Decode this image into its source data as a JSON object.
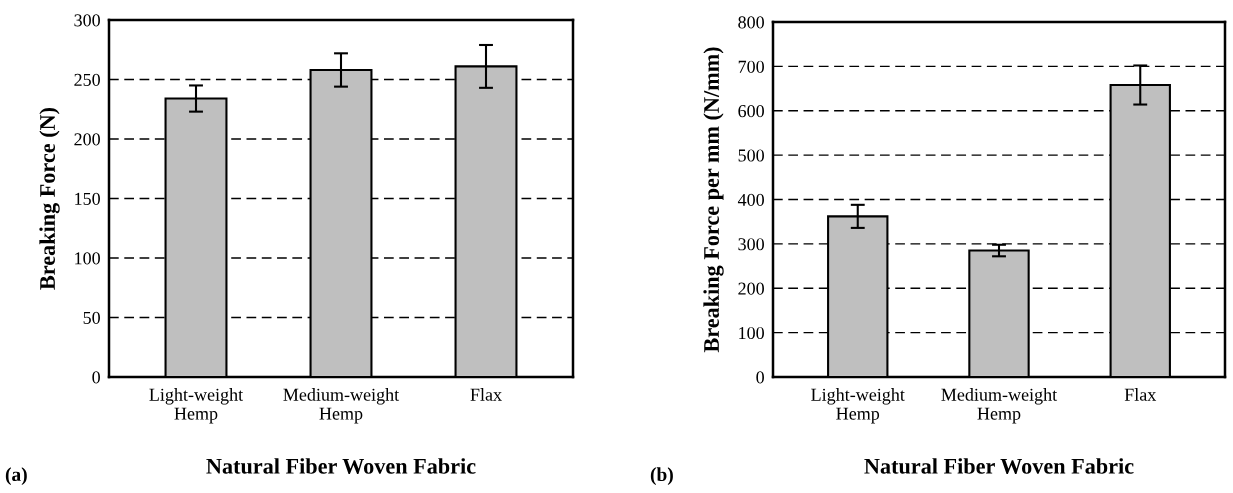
{
  "chart_data": [
    {
      "type": "bar",
      "xlabel": "Natural Fiber Woven Fabric",
      "ylabel": "Breaking Force (N)",
      "categories": [
        "Light-weight\nHemp",
        "Medium-weight\nHemp",
        "Flax"
      ],
      "values": [
        234,
        258,
        261
      ],
      "errors": [
        11,
        14,
        18
      ],
      "color": "#bfbfbf",
      "ylim": [
        0,
        300
      ],
      "yticks": [
        0,
        50,
        100,
        150,
        200,
        250,
        300
      ],
      "grid": "y",
      "annotations": [
        "(a)"
      ]
    },
    {
      "type": "bar",
      "xlabel": "Natural Fiber Woven Fabric",
      "ylabel": "Breaking Force per mm (N/mm)",
      "categories": [
        "Light-weight\nHemp",
        "Medium-weight\nHemp",
        "Flax"
      ],
      "values": [
        362,
        285,
        658
      ],
      "errors": [
        26,
        13,
        44
      ],
      "color": "#bfbfbf",
      "ylim": [
        0,
        800
      ],
      "yticks": [
        0,
        100,
        200,
        300,
        400,
        500,
        600,
        700,
        800
      ],
      "grid": "y",
      "annotations": [
        "(b)"
      ]
    }
  ]
}
